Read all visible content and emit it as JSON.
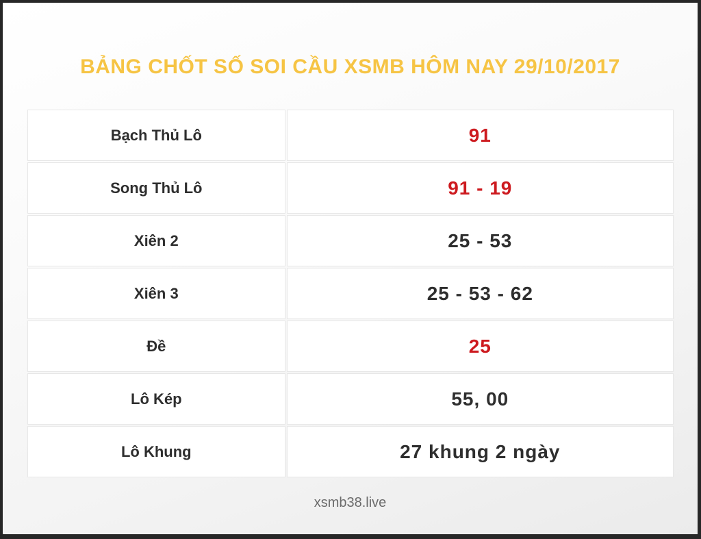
{
  "page": {
    "title": "BẢNG CHỐT SỐ SOI CẦU XSMB HÔM NAY 29/10/2017",
    "footer": "xsmb38.live"
  },
  "colors": {
    "title_gold": "#f6c444",
    "value_red": "#cd1a1f",
    "text_dark": "#2e2e2e",
    "footer_gray": "#6b6b6b",
    "frame_dark": "#272727"
  },
  "chart_data": {
    "type": "table",
    "title": "BẢNG CHỐT SỐ SOI CẦU XSMB HÔM NAY 29/10/2017",
    "columns": [
      "label",
      "value"
    ],
    "rows": [
      {
        "label": "Bạch Thủ Lô",
        "value": "91",
        "highlight": true
      },
      {
        "label": "Song Thủ Lô",
        "value": "91 - 19",
        "highlight": true
      },
      {
        "label": "Xiên 2",
        "value": "25 - 53",
        "highlight": false
      },
      {
        "label": "Xiên 3",
        "value": "25 - 53 - 62",
        "highlight": false
      },
      {
        "label": "Đề",
        "value": "25",
        "highlight": true
      },
      {
        "label": "Lô Kép",
        "value": "55, 00",
        "highlight": false
      },
      {
        "label": "Lô Khung",
        "value": "27 khung 2 ngày",
        "highlight": false
      }
    ]
  }
}
